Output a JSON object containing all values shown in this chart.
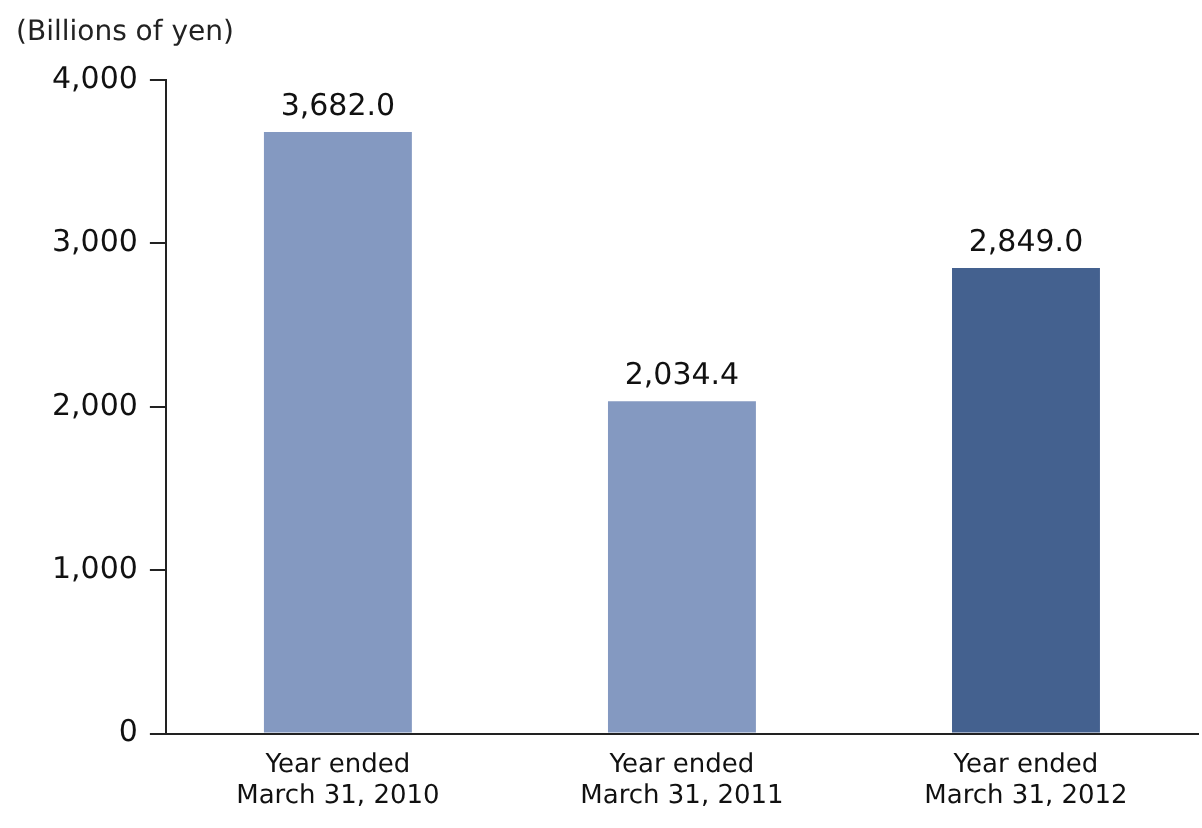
{
  "chart_data": {
    "type": "bar",
    "ylabel": "(Billions of yen)",
    "categories": [
      "Year ended\nMarch 31, 2010",
      "Year ended\nMarch 31, 2011",
      "Year ended\nMarch 31, 2012"
    ],
    "values": [
      3682.0,
      2034.4,
      2849.0
    ],
    "colors": [
      "#8499c1",
      "#8499c1",
      "#44618f"
    ],
    "value_labels": [
      "3,682.0",
      "2,034.4",
      "2,849.0"
    ],
    "ylim": [
      0,
      4000
    ],
    "yticks": [
      {
        "value": 0,
        "label": "0"
      },
      {
        "value": 1000,
        "label": "1,000"
      },
      {
        "value": 2000,
        "label": "2,000"
      },
      {
        "value": 3000,
        "label": "3,000"
      },
      {
        "value": 4000,
        "label": "4,000"
      }
    ],
    "grid": false,
    "legend": false
  }
}
